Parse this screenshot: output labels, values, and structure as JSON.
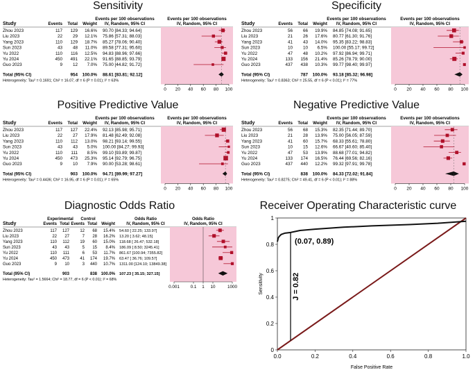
{
  "colors": {
    "forest_bg": "#f6c8d8",
    "marker": "#b0102a",
    "diamond": "#111111",
    "roc_diagonal": "#7a1a1a",
    "roc_curve": "#111111"
  },
  "chart_data": [
    {
      "type": "table",
      "id": "sens",
      "title": "Sensitivity",
      "columns": {
        "study": "Study",
        "events": "Events",
        "total": "Total",
        "weight": "Weight",
        "est_h1": "Events per 100 observations",
        "est_h2": "IV, Random, 95% CI",
        "plot_h1": "Events per 100 observations",
        "plot_h2": "IV, Random, 95% CI"
      },
      "rows": [
        {
          "study": "Zhou 2023",
          "events": "117",
          "total": "129",
          "weight": "16.6%",
          "est": "90.70 [84.33; 94.64]",
          "value": 90.7,
          "lo": 84.33,
          "hi": 94.64
        },
        {
          "study": "Liu 2023",
          "events": "22",
          "total": "29",
          "weight": "12.1%",
          "est": "75.86 [57.31; 88.03]",
          "value": 75.86,
          "lo": 57.31,
          "hi": 88.03
        },
        {
          "study": "Yang 2023",
          "events": "110",
          "total": "129",
          "weight": "18.7%",
          "est": "85.27 [78.06; 90.40]",
          "value": 85.27,
          "lo": 78.06,
          "hi": 90.4
        },
        {
          "study": "Sun 2023",
          "events": "43",
          "total": "48",
          "weight": "11.0%",
          "est": "89.58 [77.31; 95.60]",
          "value": 89.58,
          "lo": 77.31,
          "hi": 95.6
        },
        {
          "study": "Yu 2022",
          "events": "110",
          "total": "116",
          "weight": "12.5%",
          "est": "94.83 [88.96; 97.66]",
          "value": 94.83,
          "lo": 88.96,
          "hi": 97.66
        },
        {
          "study": "Yu 2024",
          "events": "450",
          "total": "491",
          "weight": "22.1%",
          "est": "91.65 [88.85; 93.79]",
          "value": 91.65,
          "lo": 88.85,
          "hi": 93.79
        },
        {
          "study": "Guo 2023",
          "events": "9",
          "total": "12",
          "weight": "7.0%",
          "est": "75.00 [44.82; 91.72]",
          "value": 75.0,
          "lo": 44.82,
          "hi": 91.72
        }
      ],
      "total": {
        "label": "Total (95% CI)",
        "total": "954",
        "weight": "100.0%",
        "est": "88.61 [83.81; 92.12]",
        "value": 88.61,
        "lo": 83.81,
        "hi": 92.12
      },
      "heterogeneity": "Heterogeneity: Tau² = 0.1691; Chi² = 16.07, df = 6 (P = 0.01); I² = 63%",
      "axis": {
        "min": 0,
        "max": 100,
        "ticks": [
          0,
          20,
          40,
          60,
          80,
          100
        ],
        "tick_labels": [
          "0",
          "20",
          "40",
          "60",
          "80",
          "100"
        ]
      }
    },
    {
      "type": "table",
      "id": "spec",
      "title": "Specificity",
      "columns": {
        "study": "Study",
        "events": "Events",
        "total": "Total",
        "weight": "Weight",
        "est_h1": "Events per 100 observations",
        "est_h2": "IV, Random, 95% CI",
        "plot_h1": "Events per 100 observations",
        "plot_h2": "IV, Random, 95% CI"
      },
      "rows": [
        {
          "study": "Zhou 2023",
          "events": "56",
          "total": "66",
          "weight": "19.9%",
          "est": "84.85 [74.08; 91.65]",
          "value": 84.85,
          "lo": 74.08,
          "hi": 91.65
        },
        {
          "study": "Liu 2023",
          "events": "21",
          "total": "26",
          "weight": "17.6%",
          "est": "80.77 [61.30; 91.76]",
          "value": 80.77,
          "lo": 61.3,
          "hi": 91.76
        },
        {
          "study": "Yang 2023",
          "events": "41",
          "total": "43",
          "weight": "14.0%",
          "est": "95.35 [83.22; 98.83]",
          "value": 95.35,
          "lo": 83.22,
          "hi": 98.83
        },
        {
          "study": "Sun 2023",
          "events": "10",
          "total": "10",
          "weight": "6.5%",
          "est": "100.00 [55.17; 99.72]",
          "value": 100.0,
          "lo": 55.17,
          "hi": 99.72
        },
        {
          "study": "Yu 2022",
          "events": "47",
          "total": "48",
          "weight": "10.2%",
          "est": "97.92 [86.94; 99.71]",
          "value": 97.92,
          "lo": 86.94,
          "hi": 99.71
        },
        {
          "study": "Yu 2024",
          "events": "133",
          "total": "156",
          "weight": "21.4%",
          "est": "85.26 [78.79; 90.00]",
          "value": 85.26,
          "lo": 78.79,
          "hi": 90.0
        },
        {
          "study": "Guo 2023",
          "events": "437",
          "total": "438",
          "weight": "10.3%",
          "est": "99.77 [98.40; 99.97]",
          "value": 99.77,
          "lo": 98.4,
          "hi": 99.97
        }
      ],
      "total": {
        "label": "Total (95% CI)",
        "total": "787",
        "weight": "100.0%",
        "est": "93.18 [85.32; 96.98]",
        "value": 93.18,
        "lo": 85.32,
        "hi": 96.98
      },
      "heterogeneity": "Heterogeneity: Tau² = 0.8363; Chi² = 25.55, df = 6 (P < 0.01); I² = 77%",
      "axis": {
        "min": 0,
        "max": 100,
        "ticks": [
          0,
          20,
          40,
          60,
          80,
          100
        ],
        "tick_labels": [
          "0",
          "20",
          "40",
          "60",
          "80",
          "100"
        ]
      }
    },
    {
      "type": "table",
      "id": "ppv",
      "title": "Positive Predictive Value",
      "columns": {
        "study": "Study",
        "events": "Events",
        "total": "Total",
        "weight": "Weight",
        "est_h1": "Events per 100 observations",
        "est_h2": "IV, Random, 95% CI",
        "plot_h1": "Events per 100 observations",
        "plot_h2": "IV, Random, 95% CI"
      },
      "rows": [
        {
          "study": "Zhou 2023",
          "events": "117",
          "total": "127",
          "weight": "22.4%",
          "est": "92.13 [85.98; 95.71]",
          "value": 92.13,
          "lo": 85.98,
          "hi": 95.71
        },
        {
          "study": "Liu 2023",
          "events": "22",
          "total": "27",
          "weight": "17.9%",
          "est": "81.48 [62.49; 92.08]",
          "value": 81.48,
          "lo": 62.49,
          "hi": 92.08
        },
        {
          "study": "Yang 2023",
          "events": "110",
          "total": "112",
          "weight": "13.0%",
          "est": "98.21 [93.14; 99.55]",
          "value": 98.21,
          "lo": 93.14,
          "hi": 99.55
        },
        {
          "study": "Sun 2023",
          "events": "43",
          "total": "43",
          "weight": "5.0%",
          "est": "100.00 [84.27; 99.93]",
          "value": 100.0,
          "lo": 84.27,
          "hi": 99.93
        },
        {
          "study": "Yu 2022",
          "events": "110",
          "total": "111",
          "weight": "8.5%",
          "est": "99.10 [93.89; 99.87]",
          "value": 99.1,
          "lo": 93.89,
          "hi": 99.87
        },
        {
          "study": "Yu 2024",
          "events": "450",
          "total": "473",
          "weight": "25.3%",
          "est": "95.14 [92.79; 96.75]",
          "value": 95.14,
          "lo": 92.79,
          "hi": 96.75
        },
        {
          "study": "Guo 2023",
          "events": "9",
          "total": "10",
          "weight": "7.9%",
          "est": "90.00 [53.28; 98.61]",
          "value": 90.0,
          "lo": 53.28,
          "hi": 98.61
        }
      ],
      "total": {
        "label": "Total (95% CI)",
        "total": "903",
        "weight": "100.0%",
        "est": "94.71 [89.99; 97.27]",
        "value": 94.71,
        "lo": 89.99,
        "hi": 97.27
      },
      "heterogeneity": "Heterogeneity: Tau² = 0.4436; Chi² = 16.95, df = 6 (P = 0.01); I² = 65%",
      "axis": {
        "min": 0,
        "max": 100,
        "ticks": [
          0,
          20,
          40,
          60,
          80,
          100
        ],
        "tick_labels": [
          "0",
          "20",
          "40",
          "60",
          "80",
          "100"
        ]
      }
    },
    {
      "type": "table",
      "id": "npv",
      "title": "Negative Predictive Value",
      "columns": {
        "study": "Study",
        "events": "Events",
        "total": "Total",
        "weight": "Weight",
        "est_h1": "Events per 100 observations",
        "est_h2": "IV, Random, 95% CI",
        "plot_h1": "Events per 100 observations",
        "plot_h2": "IV, Random, 95% CI"
      },
      "rows": [
        {
          "study": "Zhou 2023",
          "events": "56",
          "total": "68",
          "weight": "15.3%",
          "est": "82.35 [71.44; 89.70]",
          "value": 82.35,
          "lo": 71.44,
          "hi": 89.7
        },
        {
          "study": "Liu 2023",
          "events": "21",
          "total": "28",
          "weight": "13.9%",
          "est": "75.00 [56.05; 87.59]",
          "value": 75.0,
          "lo": 56.05,
          "hi": 87.59
        },
        {
          "study": "Yang 2023",
          "events": "41",
          "total": "60",
          "weight": "15.7%",
          "est": "68.33 [55.61; 78.80]",
          "value": 68.33,
          "lo": 55.61,
          "hi": 78.8
        },
        {
          "study": "Sun 2023",
          "events": "10",
          "total": "15",
          "weight": "12.6%",
          "est": "66.67 [40.60; 85.40]",
          "value": 66.67,
          "lo": 40.6,
          "hi": 85.4
        },
        {
          "study": "Yu 2022",
          "events": "47",
          "total": "53",
          "weight": "13.9%",
          "est": "88.68 [77.01; 94.82]",
          "value": 88.68,
          "lo": 77.01,
          "hi": 94.82
        },
        {
          "study": "Yu 2024",
          "events": "133",
          "total": "174",
          "weight": "16.5%",
          "est": "76.44 [69.56; 82.16]",
          "value": 76.44,
          "lo": 69.56,
          "hi": 82.16
        },
        {
          "study": "Guo 2023",
          "events": "437",
          "total": "440",
          "weight": "12.2%",
          "est": "99.32 [97.91; 99.78]",
          "value": 99.32,
          "lo": 97.91,
          "hi": 99.78
        }
      ],
      "total": {
        "label": "Total (95% CI)",
        "total": "838",
        "weight": "100.0%",
        "est": "84.33 [72.02; 91.84]",
        "value": 84.33,
        "lo": 72.02,
        "hi": 91.84
      },
      "heterogeneity": "Heterogeneity: Tau² = 0.8275; Chi² = 49.41, df = 6 (P < 0.01); I² = 88%",
      "axis": {
        "min": 0,
        "max": 100,
        "ticks": [
          0,
          20,
          40,
          60,
          80,
          100
        ],
        "tick_labels": [
          "0",
          "20",
          "40",
          "60",
          "80",
          "100"
        ]
      }
    },
    {
      "type": "table",
      "id": "dor",
      "title": "Diagnostic Odds Ratio",
      "columns": {
        "study": "Study",
        "grp1": "Experimental",
        "grp2": "Control",
        "e_events": "Events",
        "e_total": "Total",
        "c_events": "Events",
        "c_total": "Total",
        "weight": "Weight",
        "est_h1": "Odds Ratio",
        "est_h2": "IV, Random, 95% CI",
        "plot_h1": "Odds Ratio",
        "plot_h2": "IV, Random, 95% CI"
      },
      "rows": [
        {
          "study": "Zhou 2023",
          "e_events": "117",
          "e_total": "127",
          "c_events": "12",
          "c_total": "68",
          "weight": "15.4%",
          "est": "54.60 [ 22.25;  133.97]",
          "value": 54.6,
          "lo": 22.25,
          "hi": 133.97
        },
        {
          "study": "Liu 2023",
          "e_events": "22",
          "e_total": "27",
          "c_events": "7",
          "c_total": "28",
          "weight": "16.2%",
          "est": "13.20 [  3.62;   48.15]",
          "value": 13.2,
          "lo": 3.62,
          "hi": 48.15
        },
        {
          "study": "Yang 2023",
          "e_events": "110",
          "e_total": "112",
          "c_events": "19",
          "c_total": "60",
          "weight": "15.0%",
          "est": "118.68 [ 26.47;  532.18]",
          "value": 118.68,
          "lo": 26.47,
          "hi": 532.18
        },
        {
          "study": "Sun 2023",
          "e_events": "43",
          "e_total": "43",
          "c_events": "5",
          "c_total": "15",
          "weight": "8.4%",
          "est": "186.09 [ 8.50; 3245.41]",
          "value": 186.09,
          "lo": 8.5,
          "hi": 3245.41
        },
        {
          "study": "Yu 2022",
          "e_events": "110",
          "e_total": "111",
          "c_events": "6",
          "c_total": "53",
          "weight": "11.7%",
          "est": "861.67 [100.94; 7355.82]",
          "value": 861.67,
          "lo": 100.94,
          "hi": 7355.82
        },
        {
          "study": "Yu 2024",
          "e_events": "450",
          "e_total": "473",
          "c_events": "41",
          "c_total": "174",
          "weight": "19.7%",
          "est": "63.47 [ 36.76;  109.57]",
          "value": 63.47,
          "lo": 36.76,
          "hi": 109.57
        },
        {
          "study": "Guo 2023",
          "e_events": "9",
          "e_total": "10",
          "c_events": "3",
          "c_total": "440",
          "weight": "10.7%",
          "est": "1311.00 [124.10; 13849.38]",
          "value": 1311.0,
          "lo": 124.1,
          "hi": 13849.38
        }
      ],
      "total": {
        "label": "Total (95% CI)",
        "e_total": "903",
        "c_total": "838",
        "weight": "100.0%",
        "est": "107.23 [ 35.15;  327.15]",
        "value": 107.23,
        "lo": 35.15,
        "hi": 327.15
      },
      "heterogeneity": "Heterogeneity: Tau² = 1.5664; Chi² = 18.77, df = 6 (P < 0.01); I² = 68%",
      "axis": {
        "scale": "log",
        "min": 0.001,
        "max": 1000,
        "ticks": [
          0.001,
          0.1,
          1,
          10,
          1000
        ],
        "tick_labels": [
          "0.001",
          "0.1",
          "1",
          "10",
          "1000"
        ]
      }
    },
    {
      "type": "line",
      "id": "roc",
      "title": "Receiver Operating Characteristic curve",
      "xlabel": "False Positive Rate",
      "ylabel": "Sensitivity",
      "xlim": [
        0,
        1
      ],
      "ylim": [
        0,
        1
      ],
      "xticks": [
        0,
        0.2,
        0.4,
        0.6,
        0.8,
        1.0
      ],
      "xtick_labels": [
        "0.0",
        "0.2",
        "0.4",
        "0.6",
        "0.8",
        "1.0"
      ],
      "yticks": [
        0,
        0.2,
        0.4,
        0.6,
        0.8,
        1.0
      ],
      "ytick_labels": [
        "0",
        "0.2",
        "0.4",
        "0.6",
        "0.8",
        "1"
      ],
      "series": [
        {
          "name": "ROC curve",
          "x": [
            0,
            0.005,
            0.01,
            0.02,
            0.04,
            0.07,
            0.12,
            0.2,
            0.35,
            0.5,
            0.7,
            0.85,
            1.0
          ],
          "y": [
            0.82,
            0.85,
            0.86,
            0.875,
            0.885,
            0.89,
            0.905,
            0.915,
            0.93,
            0.94,
            0.95,
            0.96,
            0.975
          ]
        },
        {
          "name": "Chance line",
          "x": [
            0,
            1
          ],
          "y": [
            0,
            1
          ]
        }
      ],
      "youden_point": {
        "x": 0.07,
        "y": 0.89,
        "label": "(0.07, 0.89)"
      },
      "youden_line": {
        "x": 0.07,
        "y_from": 0.07,
        "y_to": 0.89,
        "label": "J = 0.82"
      }
    }
  ]
}
